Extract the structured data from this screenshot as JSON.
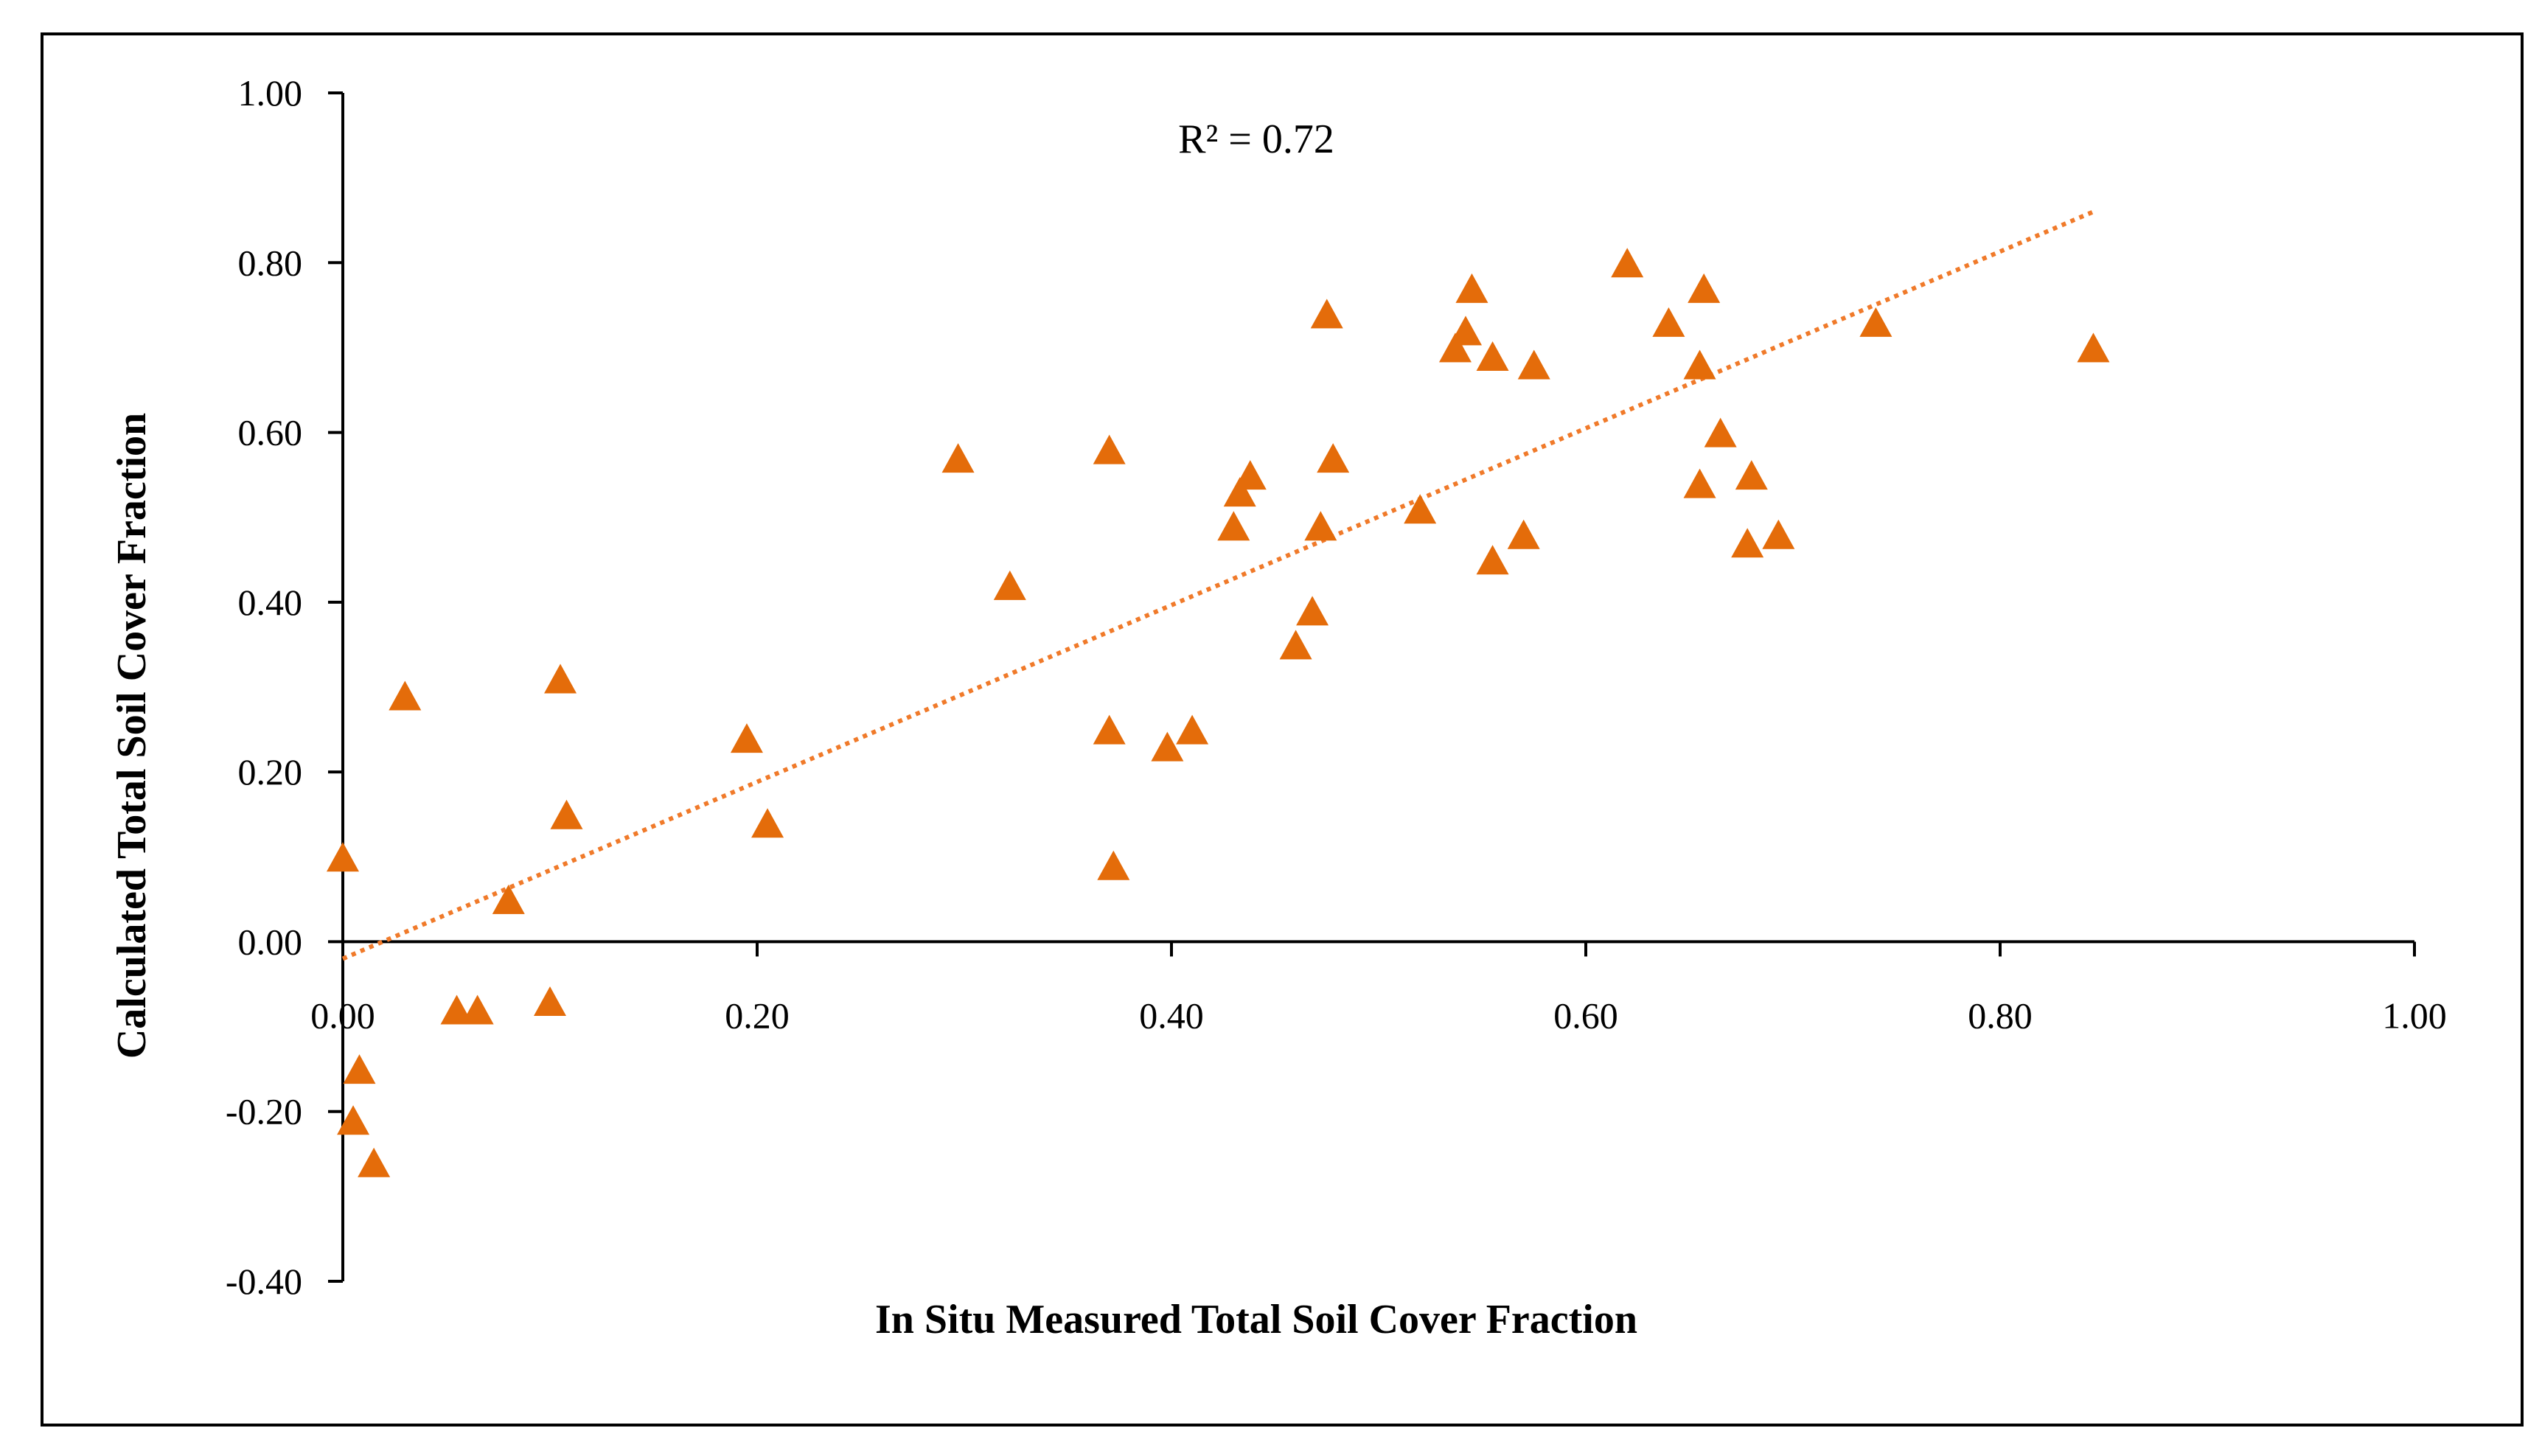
{
  "chart_data": {
    "type": "scatter",
    "title": "",
    "xlabel": "In Situ Measured Total Soil Cover Fraction",
    "ylabel": "Calculated Total Soil Cover Fraction",
    "xlim": [
      0,
      1
    ],
    "ylim": [
      -0.4,
      1
    ],
    "x_ticks": [
      "0.00",
      "0.20",
      "0.40",
      "0.60",
      "0.80",
      "1.00"
    ],
    "y_ticks": [
      "-0.40",
      "-0.20",
      "0.00",
      "0.20",
      "0.40",
      "0.60",
      "0.80",
      "1.00"
    ],
    "grid": false,
    "annotation": "R² = 0.72",
    "marker_color": "#E46C0A",
    "trendline_color": "#F07A2A",
    "trendline": {
      "style": "dotted",
      "x_start": 0.0,
      "y_start": -0.02,
      "x_end": 0.845,
      "y_end": 0.86
    },
    "points": [
      [
        0.0,
        0.1
      ],
      [
        0.03,
        0.29
      ],
      [
        0.105,
        0.31
      ],
      [
        0.108,
        0.15
      ],
      [
        0.08,
        0.05
      ],
      [
        0.055,
        -0.08
      ],
      [
        0.065,
        -0.08
      ],
      [
        0.1,
        -0.07
      ],
      [
        0.008,
        -0.15
      ],
      [
        0.005,
        -0.21
      ],
      [
        0.015,
        -0.26
      ],
      [
        0.195,
        0.24
      ],
      [
        0.205,
        0.14
      ],
      [
        0.297,
        0.57
      ],
      [
        0.322,
        0.42
      ],
      [
        0.37,
        0.58
      ],
      [
        0.37,
        0.25
      ],
      [
        0.372,
        0.09
      ],
      [
        0.398,
        0.23
      ],
      [
        0.41,
        0.25
      ],
      [
        0.43,
        0.49
      ],
      [
        0.433,
        0.53
      ],
      [
        0.438,
        0.55
      ],
      [
        0.46,
        0.35
      ],
      [
        0.468,
        0.39
      ],
      [
        0.472,
        0.49
      ],
      [
        0.475,
        0.74
      ],
      [
        0.478,
        0.57
      ],
      [
        0.52,
        0.51
      ],
      [
        0.537,
        0.7
      ],
      [
        0.542,
        0.72
      ],
      [
        0.545,
        0.77
      ],
      [
        0.555,
        0.69
      ],
      [
        0.555,
        0.45
      ],
      [
        0.57,
        0.48
      ],
      [
        0.575,
        0.68
      ],
      [
        0.62,
        0.8
      ],
      [
        0.64,
        0.73
      ],
      [
        0.655,
        0.54
      ],
      [
        0.655,
        0.68
      ],
      [
        0.657,
        0.77
      ],
      [
        0.665,
        0.6
      ],
      [
        0.678,
        0.47
      ],
      [
        0.68,
        0.55
      ],
      [
        0.693,
        0.48
      ],
      [
        0.74,
        0.73
      ],
      [
        0.845,
        0.7
      ]
    ]
  }
}
